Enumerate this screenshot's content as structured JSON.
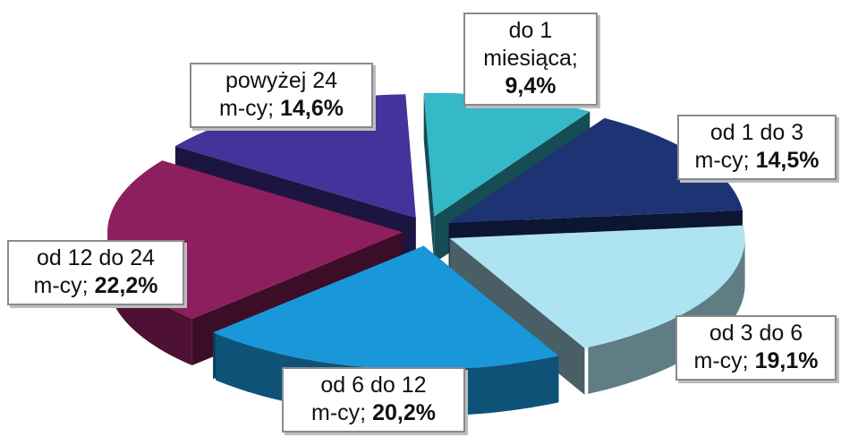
{
  "chart_data": {
    "type": "pie",
    "title": "",
    "style": "3d-exploded",
    "slices": [
      {
        "line1": "do 1",
        "line2": "miesiąca;",
        "pct_text": "9,4%",
        "value": 9.4,
        "color": "#35b8c8"
      },
      {
        "line1": "od 1 do 3",
        "line2": "m-cy;",
        "pct_text": "14,5%",
        "value": 14.5,
        "color": "#1d3374"
      },
      {
        "line1": "od 3 do 6",
        "line2": "m-cy;",
        "pct_text": "19,1%",
        "value": 19.1,
        "color": "#aee3f1"
      },
      {
        "line1": "od 6 do 12",
        "line2": "m-cy;",
        "pct_text": "20,2%",
        "value": 20.2,
        "color": "#1a97d9"
      },
      {
        "line1": "od 12 do 24",
        "line2": "m-cy;",
        "pct_text": "22,2%",
        "value": 22.2,
        "color": "#8e1f5e"
      },
      {
        "line1": "powyżej 24",
        "line2": "m-cy;",
        "pct_text": "14,6%",
        "value": 14.6,
        "color": "#43339a"
      }
    ]
  }
}
